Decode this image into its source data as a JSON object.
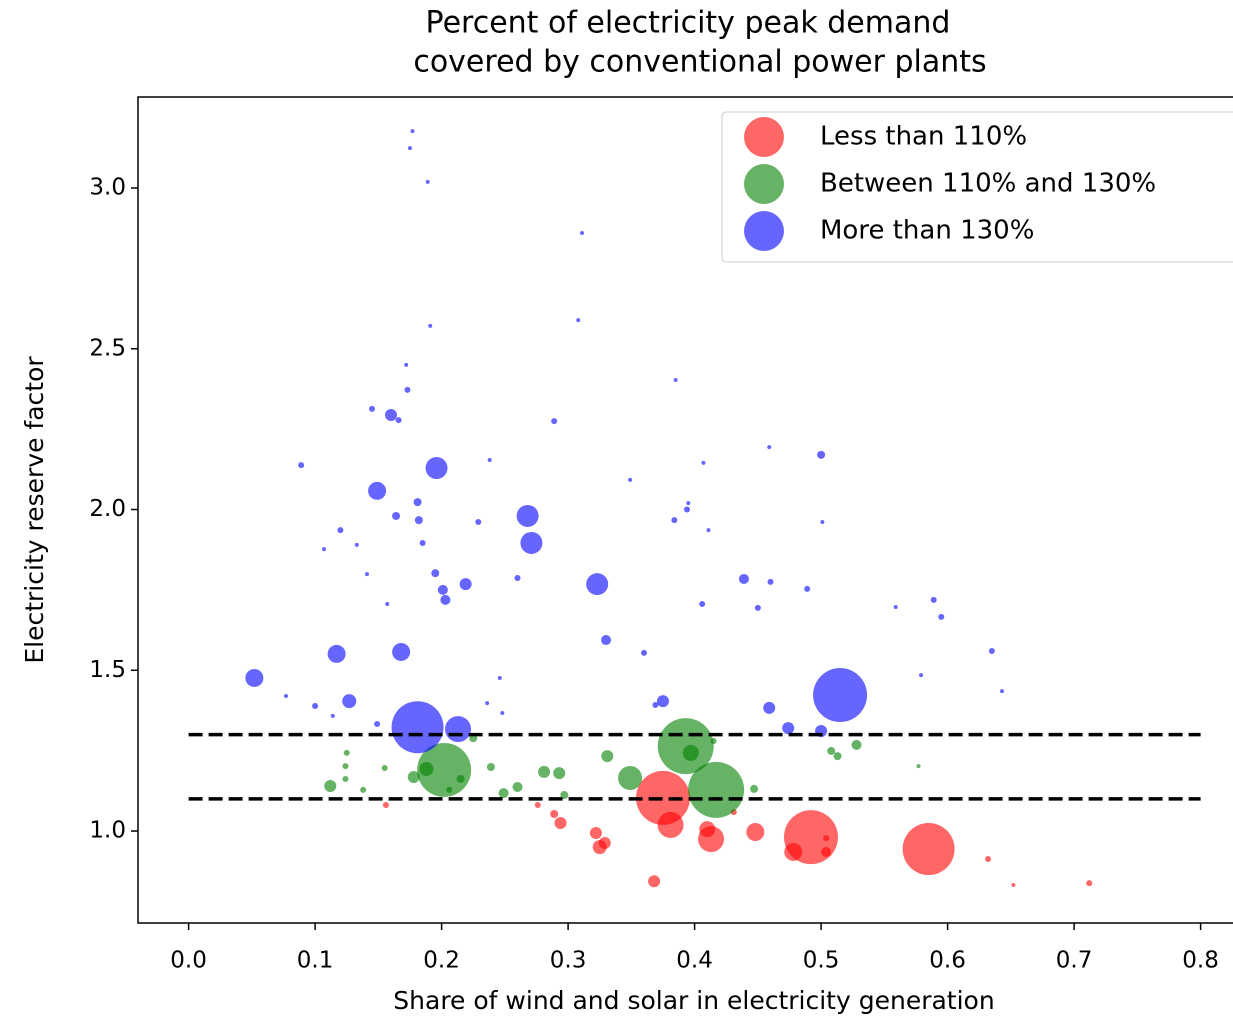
{
  "chart_data": {
    "type": "scatter",
    "title": [
      "Percent of electricity peak demand",
      "covered by conventional power plants"
    ],
    "x_label": "Share of wind and solar in electricity generation",
    "y_label": "Electricity reserve factor",
    "xlim": [
      -0.04,
      0.84
    ],
    "ylim": [
      0.714,
      3.283
    ],
    "xticks": [
      {
        "value": 0,
        "label": "0.0"
      },
      0.1,
      0.2,
      0.3,
      0.4,
      0.5,
      0.6,
      0.7,
      0.8
    ],
    "yticks": [
      {
        "value": 1,
        "label": "1.0"
      },
      1.5,
      {
        "value": 2,
        "label": "2.0"
      },
      2.5,
      {
        "value": 3,
        "label": "3.0"
      }
    ],
    "legend": "upper right",
    "opacity": 0.6,
    "hlines": [
      {
        "y": 1.1,
        "x": [
          0,
          0.8
        ]
      },
      {
        "y": 1.3,
        "x": [
          0,
          0.8
        ]
      }
    ],
    "series": [
      {
        "name": "Less than 110%",
        "color": "#ff0000",
        "x": [
          0.375,
          0.585,
          0.492,
          0.381,
          0.413,
          0.448,
          0.41,
          0.478,
          0.368,
          0.325,
          0.329,
          0.322,
          0.294,
          0.289,
          0.276,
          0.504,
          0.632,
          0.652,
          0.712,
          0.156,
          0.431,
          0.504
        ],
        "values": [
          1.103,
          0.944,
          0.981,
          1.019,
          0.975,
          0.997,
          1.006,
          0.935,
          0.844,
          0.95,
          0.963,
          0.994,
          1.025,
          1.053,
          1.081,
          0.935,
          0.913,
          0.832,
          0.838,
          1.081,
          1.059,
          0.978
        ],
        "sizes": [
          729,
          676,
          729,
          169,
          169,
          81,
          64,
          81,
          36,
          49,
          36,
          36,
          36,
          16,
          9,
          25,
          9,
          4,
          9,
          9,
          9,
          9
        ]
      },
      {
        "name": "Between 110% and 130%",
        "color": "#008000",
        "x": [
          0.393,
          0.202,
          0.417,
          0.349,
          0.397,
          0.331,
          0.293,
          0.281,
          0.178,
          0.188,
          0.112,
          0.26,
          0.249,
          0.225,
          0.239,
          0.528,
          0.508,
          0.513,
          0.447,
          0.125,
          0.124,
          0.124,
          0.155,
          0.138,
          0.206,
          0.215,
          0.577,
          0.297,
          0.415
        ],
        "values": [
          1.264,
          1.19,
          1.128,
          1.165,
          1.243,
          1.233,
          1.18,
          1.184,
          1.168,
          1.193,
          1.14,
          1.137,
          1.118,
          1.289,
          1.199,
          1.268,
          1.249,
          1.233,
          1.131,
          1.243,
          1.202,
          1.162,
          1.196,
          1.128,
          1.128,
          1.162,
          1.202,
          1.112,
          1.28
        ],
        "sizes": [
          784,
          729,
          784,
          144,
          64,
          36,
          36,
          36,
          36,
          49,
          36,
          25,
          25,
          16,
          16,
          25,
          16,
          16,
          16,
          9,
          9,
          9,
          9,
          9,
          9,
          16,
          4,
          16,
          9
        ]
      },
      {
        "name": "More than 130%",
        "color": "#0000ff",
        "x": [
          0.515,
          0.181,
          0.213,
          0.196,
          0.268,
          0.271,
          0.323,
          0.149,
          0.168,
          0.117,
          0.052,
          0.127,
          0.16,
          0.219,
          0.33,
          0.375,
          0.459,
          0.474,
          0.5,
          0.439,
          0.203,
          0.201,
          0.181,
          0.182,
          0.164,
          0.195,
          0.5,
          0.289,
          0.089,
          0.173,
          0.394,
          0.384,
          0.406,
          0.45,
          0.46,
          0.489,
          0.589,
          0.595,
          0.635,
          0.643,
          0.579,
          0.559,
          0.36,
          0.26,
          0.175,
          0.177,
          0.189,
          0.311,
          0.308,
          0.191,
          0.172,
          0.145,
          0.166,
          0.238,
          0.229,
          0.12,
          0.107,
          0.133,
          0.157,
          0.141,
          0.1,
          0.077,
          0.114,
          0.149,
          0.248,
          0.246,
          0.236,
          0.459,
          0.407,
          0.395,
          0.411,
          0.385,
          0.349,
          0.501,
          0.369,
          0.185
        ],
        "values": [
          1.423,
          1.323,
          1.317,
          2.129,
          1.98,
          1.896,
          1.768,
          2.058,
          1.557,
          1.551,
          1.476,
          1.404,
          2.294,
          1.768,
          1.594,
          1.404,
          1.383,
          1.32,
          1.311,
          1.784,
          1.719,
          1.75,
          2.023,
          1.967,
          1.98,
          1.802,
          2.17,
          2.275,
          2.138,
          2.372,
          2.0,
          1.967,
          1.706,
          1.694,
          1.775,
          1.753,
          1.719,
          1.666,
          1.56,
          1.435,
          1.485,
          1.697,
          1.554,
          1.787,
          3.124,
          3.177,
          3.019,
          2.86,
          2.589,
          2.571,
          2.45,
          2.313,
          2.278,
          2.154,
          1.961,
          1.936,
          1.877,
          1.89,
          1.706,
          1.799,
          1.389,
          1.42,
          1.358,
          1.333,
          1.367,
          1.476,
          1.398,
          2.194,
          2.145,
          2.02,
          1.936,
          2.403,
          2.092,
          1.961,
          1.392,
          1.896
        ],
        "sizes": [
          729,
          676,
          169,
          121,
          121,
          121,
          121,
          81,
          81,
          81,
          81,
          49,
          36,
          36,
          25,
          36,
          36,
          36,
          36,
          25,
          25,
          25,
          16,
          16,
          16,
          16,
          16,
          9,
          9,
          9,
          9,
          9,
          9,
          9,
          9,
          9,
          9,
          9,
          9,
          4,
          4,
          4,
          9,
          9,
          4,
          4,
          4,
          4,
          4,
          4,
          4,
          9,
          9,
          4,
          9,
          9,
          4,
          4,
          4,
          4,
          9,
          4,
          4,
          9,
          4,
          4,
          4,
          4,
          4,
          4,
          4,
          4,
          4,
          4,
          9,
          9
        ]
      }
    ]
  }
}
